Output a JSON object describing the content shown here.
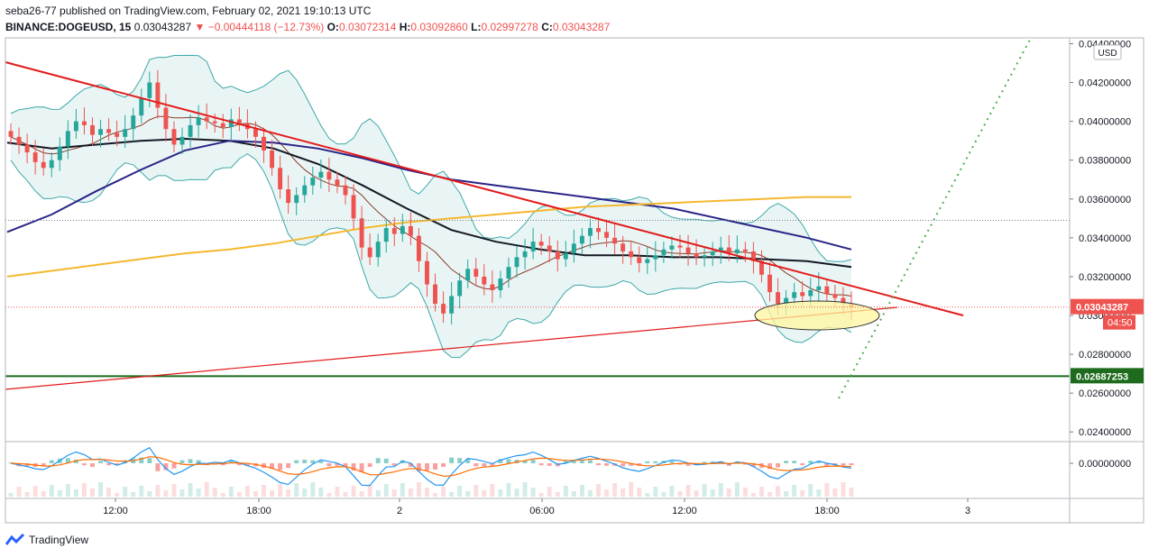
{
  "header": {
    "line1": "seba26-77 published on TradingView.com, February 02, 2021 19:10:13 UTC",
    "symbol": "BINANCE:DOGEUSD, 15",
    "last": "0.03043287",
    "change": "−0.00444118 (−12.73%)",
    "o_label": "O:",
    "o": "0.03072314",
    "h_label": "H:",
    "h": "0.03092860",
    "l_label": "L:",
    "l": "0.02997278",
    "c_label": "C:",
    "c": "0.03043287"
  },
  "currency_badge": "USD",
  "brand": {
    "name": "TradingView",
    "icon": "tradingview-logo-icon"
  },
  "colors": {
    "up": "#26a69a",
    "down": "#ef5350",
    "trendline": "#e31b1b",
    "support": "#1e6b1e",
    "ma_black": "#131722",
    "ma_navy": "#2a2486",
    "ma_yellow": "#f5b82e",
    "bb": "#3fa7a8",
    "ellipse_fill": "#fff59d",
    "dotted_projection": "#4caf50"
  },
  "chart_data": {
    "type": "candlestick",
    "timeframe": "15",
    "x_ticks": [
      "12:00",
      "18:00",
      "2",
      "06:00",
      "12:00",
      "18:00",
      "3"
    ],
    "ylim": [
      0.0235,
      0.0443
    ],
    "y_ticks": [
      "0.04400000",
      "0.04200000",
      "0.04000000",
      "0.03800000",
      "0.03600000",
      "0.03400000",
      "0.03200000",
      "0.03000000",
      "0.02800000",
      "0.02600000",
      "0.02400000"
    ],
    "current_price_label": "0.03043287",
    "countdown_label": "04:50",
    "support_label": "0.02687253",
    "support_level": 0.02687253,
    "dotted_level": 0.0349,
    "oscillator_tick": "0.00000000",
    "candle_closes": [
      0.0392,
      0.0388,
      0.0384,
      0.0379,
      0.0376,
      0.038,
      0.0387,
      0.0395,
      0.04,
      0.0398,
      0.0393,
      0.0396,
      0.0394,
      0.0392,
      0.0396,
      0.0403,
      0.0412,
      0.042,
      0.0407,
      0.0396,
      0.0388,
      0.0392,
      0.0398,
      0.0402,
      0.04,
      0.0399,
      0.0397,
      0.0401,
      0.0399,
      0.0396,
      0.0392,
      0.0385,
      0.0376,
      0.0365,
      0.0358,
      0.0362,
      0.0367,
      0.0371,
      0.0374,
      0.037,
      0.0367,
      0.0362,
      0.035,
      0.0335,
      0.033,
      0.0338,
      0.0345,
      0.0342,
      0.0346,
      0.0341,
      0.0328,
      0.0316,
      0.0306,
      0.0301,
      0.031,
      0.0318,
      0.0324,
      0.032,
      0.0316,
      0.0313,
      0.0319,
      0.0325,
      0.033,
      0.0333,
      0.0338,
      0.0336,
      0.0333,
      0.0329,
      0.0332,
      0.0337,
      0.0341,
      0.0345,
      0.0343,
      0.034,
      0.0337,
      0.0333,
      0.033,
      0.0327,
      0.0329,
      0.0331,
      0.0334,
      0.0336,
      0.0335,
      0.0332,
      0.033,
      0.0331,
      0.0333,
      0.0335,
      0.0332,
      0.0334,
      0.0333,
      0.0328,
      0.0321,
      0.0312,
      0.0306,
      0.0309,
      0.0312,
      0.031,
      0.0313,
      0.0315,
      0.0311,
      0.0309,
      0.0306,
      0.0304
    ],
    "candle_span": {
      "x_start": "10:30 (Feb 1)",
      "x_end": "19:10 (Feb 2)"
    },
    "trendlines": [
      {
        "name": "descending-resistance",
        "from": [
          0,
          0.0431
        ],
        "to": [
          1.0,
          0.0303
        ]
      },
      {
        "name": "ascending-support",
        "from": [
          0,
          0.0269
        ],
        "to": [
          1.0,
          0.0305
        ]
      }
    ],
    "moving_averages": [
      {
        "color": "#131722",
        "values": [
          0.0389,
          0.0386,
          0.0388,
          0.039,
          0.0391,
          0.039,
          0.0386,
          0.0378,
          0.0367,
          0.0355,
          0.0344,
          0.0338,
          0.0334,
          0.0331,
          0.0331,
          0.033,
          0.033,
          0.0329,
          0.0328,
          0.0325
        ]
      },
      {
        "color": "#2a2486",
        "values": [
          0.0343,
          0.0352,
          0.0364,
          0.0375,
          0.0385,
          0.039,
          0.0389,
          0.0386,
          0.0381,
          0.0375,
          0.037,
          0.0367,
          0.0364,
          0.0361,
          0.0358,
          0.0355,
          0.035,
          0.0345,
          0.034,
          0.0334
        ]
      },
      {
        "color": "#f5b82e",
        "values": [
          0.032,
          0.0323,
          0.0326,
          0.0329,
          0.0332,
          0.0334,
          0.0337,
          0.0341,
          0.0345,
          0.0348,
          0.035,
          0.0352,
          0.0354,
          0.0356,
          0.0357,
          0.0358,
          0.0359,
          0.036,
          0.0361,
          0.0361
        ]
      }
    ]
  }
}
